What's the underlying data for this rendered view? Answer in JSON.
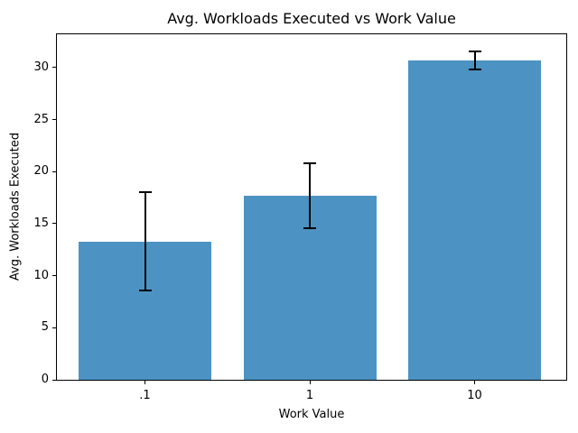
{
  "chart_data": {
    "type": "bar",
    "title": "Avg. Workloads Executed vs Work Value",
    "xlabel": "Work Value",
    "ylabel": "Avg. Workloads Executed",
    "categories": [
      ".1",
      "1",
      "10"
    ],
    "values": [
      13.3,
      17.7,
      30.7
    ],
    "error_bars": [
      4.7,
      3.1,
      0.85
    ],
    "yticks": [
      0,
      5,
      10,
      15,
      20,
      25,
      30
    ],
    "ylim": [
      0,
      33.2
    ],
    "grid": false,
    "legend": "none",
    "bar_color": "#4c92c3",
    "error_color": "#000000",
    "axis_color": "#000000"
  }
}
